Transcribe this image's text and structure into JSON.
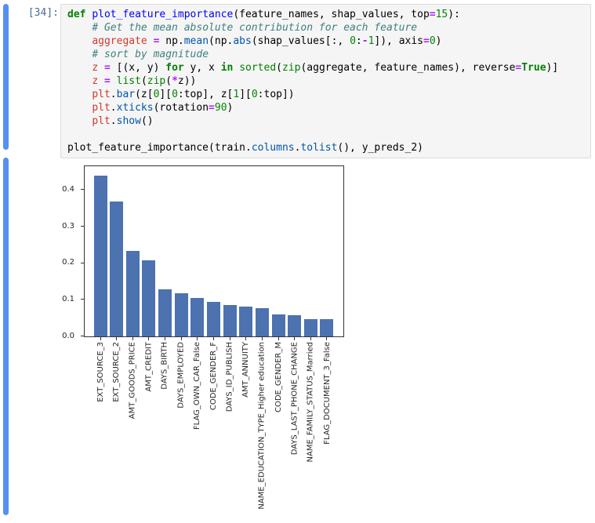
{
  "cells": {
    "code": {
      "prompt": "[34]:",
      "lines": [
        [
          [
            "k",
            "def"
          ],
          [
            "t",
            " "
          ],
          [
            "d",
            "plot_feature_importance"
          ],
          [
            "t",
            "(feature_names, shap_values, top"
          ],
          [
            "o",
            "="
          ],
          [
            "n",
            "15"
          ],
          [
            "t",
            "):"
          ]
        ],
        [
          [
            "t",
            "    "
          ],
          [
            "c",
            "# Get the mean absolute contribution for each feature"
          ]
        ],
        [
          [
            "t",
            "    "
          ],
          [
            "v",
            "aggregate"
          ],
          [
            "t",
            " "
          ],
          [
            "o",
            "="
          ],
          [
            "t",
            " np."
          ],
          [
            "p",
            "mean"
          ],
          [
            "t",
            "(np."
          ],
          [
            "p",
            "abs"
          ],
          [
            "t",
            "(shap_values[:, "
          ],
          [
            "n",
            "0"
          ],
          [
            "t",
            ":"
          ],
          [
            "o",
            "-"
          ],
          [
            "n",
            "1"
          ],
          [
            "t",
            "]), axis"
          ],
          [
            "o",
            "="
          ],
          [
            "n",
            "0"
          ],
          [
            "t",
            ")"
          ]
        ],
        [
          [
            "t",
            "    "
          ],
          [
            "c",
            "# sort by magnitude"
          ]
        ],
        [
          [
            "t",
            "    "
          ],
          [
            "v",
            "z"
          ],
          [
            "t",
            " "
          ],
          [
            "o",
            "="
          ],
          [
            "t",
            " [(x, y) "
          ],
          [
            "k",
            "for"
          ],
          [
            "t",
            " y, x "
          ],
          [
            "k",
            "in"
          ],
          [
            "t",
            " "
          ],
          [
            "b",
            "sorted"
          ],
          [
            "t",
            "("
          ],
          [
            "b",
            "zip"
          ],
          [
            "t",
            "(aggregate, feature_names), reverse"
          ],
          [
            "o",
            "="
          ],
          [
            "k",
            "True"
          ],
          [
            "t",
            ")]"
          ]
        ],
        [
          [
            "t",
            "    "
          ],
          [
            "v",
            "z"
          ],
          [
            "t",
            " "
          ],
          [
            "o",
            "="
          ],
          [
            "t",
            " "
          ],
          [
            "b",
            "list"
          ],
          [
            "t",
            "("
          ],
          [
            "b",
            "zip"
          ],
          [
            "t",
            "("
          ],
          [
            "o",
            "*"
          ],
          [
            "t",
            "z))"
          ]
        ],
        [
          [
            "t",
            "    "
          ],
          [
            "v",
            "plt"
          ],
          [
            "t",
            "."
          ],
          [
            "p",
            "bar"
          ],
          [
            "t",
            "(z["
          ],
          [
            "n",
            "0"
          ],
          [
            "t",
            "]["
          ],
          [
            "n",
            "0"
          ],
          [
            "t",
            ":top], z["
          ],
          [
            "n",
            "1"
          ],
          [
            "t",
            "]["
          ],
          [
            "n",
            "0"
          ],
          [
            "t",
            ":top])"
          ]
        ],
        [
          [
            "t",
            "    "
          ],
          [
            "v",
            "plt"
          ],
          [
            "t",
            "."
          ],
          [
            "p",
            "xticks"
          ],
          [
            "t",
            "(rotation"
          ],
          [
            "o",
            "="
          ],
          [
            "n",
            "90"
          ],
          [
            "t",
            ")"
          ]
        ],
        [
          [
            "t",
            "    "
          ],
          [
            "v",
            "plt"
          ],
          [
            "t",
            "."
          ],
          [
            "p",
            "show"
          ],
          [
            "t",
            "()"
          ]
        ],
        [],
        [
          [
            "t",
            "plot_feature_importance(train."
          ],
          [
            "p",
            "columns"
          ],
          [
            "t",
            "."
          ],
          [
            "p",
            "tolist"
          ],
          [
            "t",
            "(), y_preds_2)"
          ]
        ]
      ]
    },
    "output": {}
  },
  "chart_data": {
    "type": "bar",
    "categories": [
      "EXT_SOURCE_3",
      "EXT_SOURCE_2",
      "AMT_GOODS_PRICE",
      "AMT_CREDIT",
      "DAYS_BIRTH",
      "DAYS_EMPLOYED",
      "FLAG_OWN_CAR_False",
      "CODE_GENDER_F",
      "DAYS_ID_PUBLISH",
      "AMT_ANNUITY",
      "NAME_EDUCATION_TYPE_Higher education",
      "CODE_GENDER_M",
      "DAYS_LAST_PHONE_CHANGE",
      "NAME_FAMILY_STATUS_Married",
      "FLAG_DOCUMENT_3_False"
    ],
    "values": [
      0.44,
      0.368,
      0.234,
      0.208,
      0.129,
      0.118,
      0.104,
      0.094,
      0.085,
      0.081,
      0.078,
      0.061,
      0.058,
      0.048,
      0.048
    ],
    "title": "",
    "xlabel": "",
    "ylabel": "",
    "yticks": [
      0.0,
      0.1,
      0.2,
      0.3,
      0.4
    ],
    "ylim": [
      0,
      0.465
    ],
    "grid": false,
    "legend": false,
    "tick_label_rotation": 90,
    "bar_color": "#4C72B0"
  },
  "colors": {
    "collapser_blue": "#5590F0",
    "prompt_blue": "#4A6A9D",
    "input_bg": "#F5F5F5",
    "axes_edge": "#333333",
    "syntax": {
      "keyword": "#008000",
      "def_name": "#0000FF",
      "variable_assign": "#D0392E",
      "operator": "#AA22FF",
      "property": "#0055AA",
      "builtin": "#008000",
      "number": "#008800",
      "comment": "#408080",
      "plain": "#000000"
    }
  }
}
